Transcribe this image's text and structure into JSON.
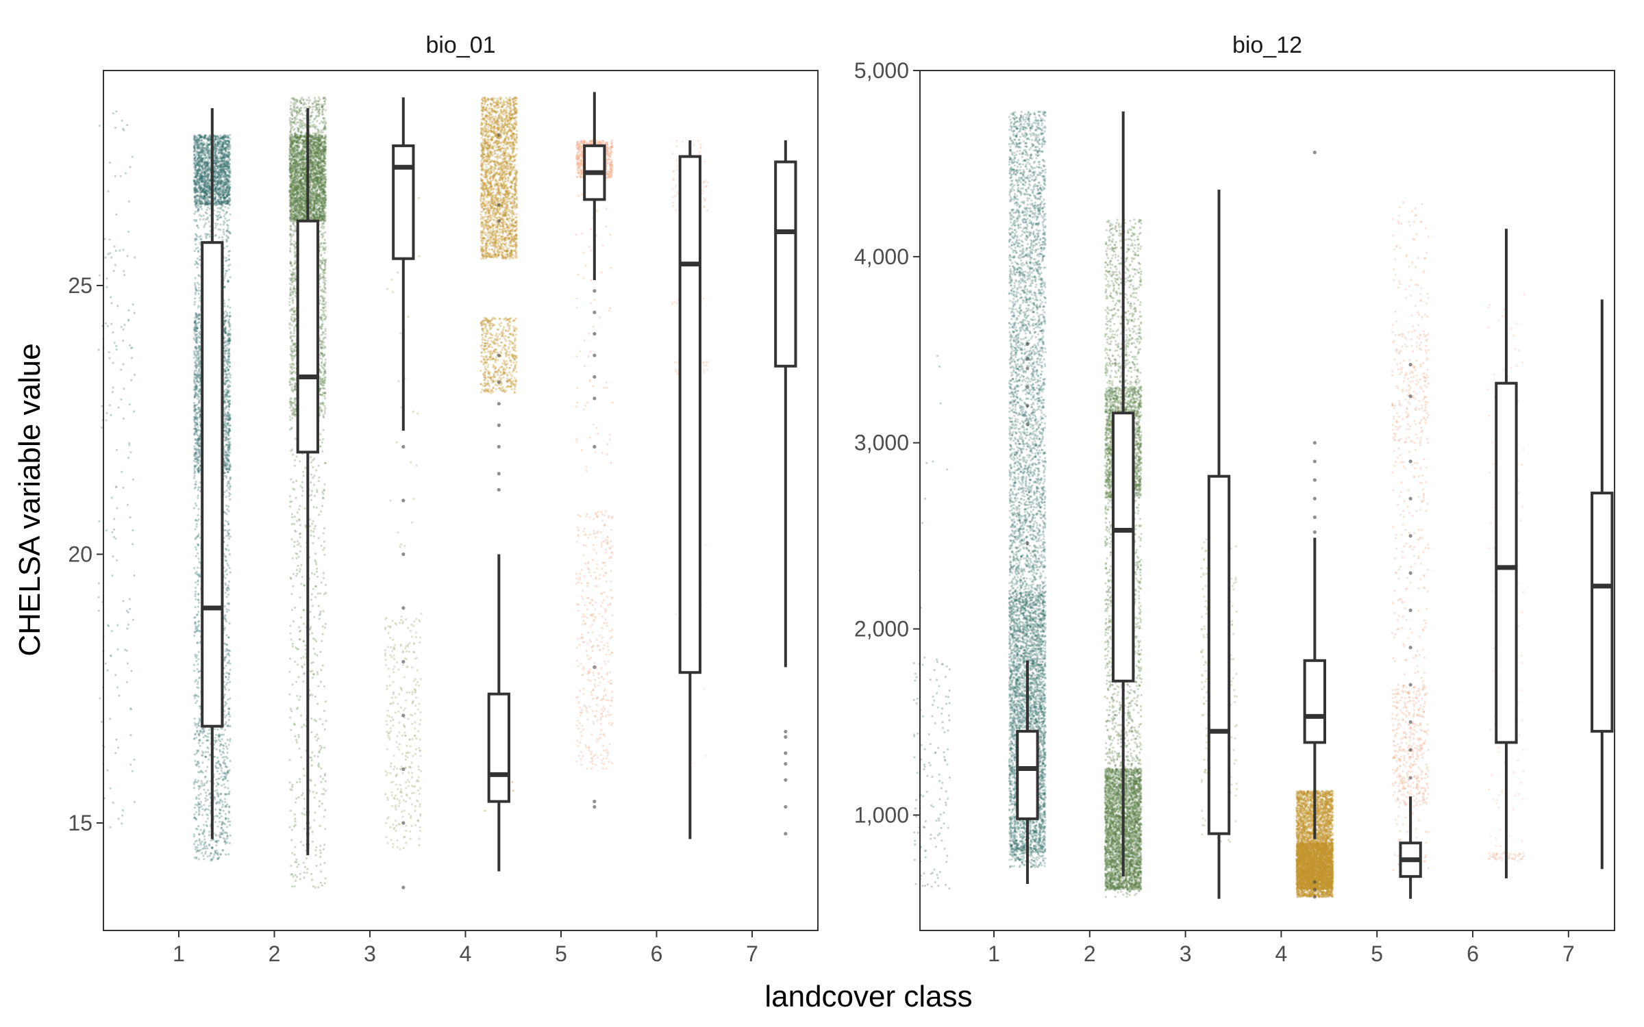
{
  "chart_data": {
    "type": "box",
    "ylabel": "CHELSA variable value",
    "xlabel": "landcover class",
    "categories": [
      "1",
      "2",
      "3",
      "4",
      "5",
      "6",
      "7"
    ],
    "class_colors": {
      "1": "#8aa6a6",
      "2": "#2e6b66",
      "3": "#5a7d45",
      "4": "#b5b28a",
      "5": "#c2952e",
      "6": "#efb08e",
      "7": "#f2c2b0"
    },
    "panels": [
      {
        "strip": "bio_01",
        "ylim": [
          13.0,
          29.0
        ],
        "yticks": [
          15,
          20,
          25
        ],
        "ytick_labels": [
          "15",
          "20",
          "25"
        ],
        "boxes": [
          {
            "class": "1",
            "whisker_low": 14.7,
            "q1": 16.8,
            "median": 19.0,
            "q3": 25.8,
            "whisker_high": 28.3,
            "outliers": []
          },
          {
            "class": "2",
            "whisker_low": 14.4,
            "q1": 21.9,
            "median": 23.3,
            "q3": 26.2,
            "whisker_high": 28.3,
            "outliers": [
              14.6,
              14.8,
              15.0,
              15.2
            ]
          },
          {
            "class": "3",
            "whisker_low": 22.3,
            "q1": 25.5,
            "median": 27.2,
            "q3": 27.6,
            "whisker_high": 28.5,
            "outliers": [
              13.8,
              15.0,
              16.0,
              17.0,
              18.0,
              19.0,
              20.0,
              21.0,
              22.0
            ]
          },
          {
            "class": "4",
            "whisker_low": 14.1,
            "q1": 15.4,
            "median": 15.9,
            "q3": 17.4,
            "whisker_high": 20.0,
            "outliers": [
              21.2,
              21.5,
              22.0,
              22.4,
              22.8,
              23.2,
              23.7,
              26.2,
              26.5,
              27.8
            ]
          },
          {
            "class": "5",
            "whisker_low": 25.1,
            "q1": 26.6,
            "median": 27.1,
            "q3": 27.6,
            "whisker_high": 28.6,
            "outliers": [
              15.3,
              15.4,
              17.9,
              22.0,
              22.9,
              23.3,
              23.7,
              24.1,
              24.5,
              24.9
            ]
          },
          {
            "class": "6",
            "whisker_low": 14.7,
            "q1": 17.8,
            "median": 25.4,
            "q3": 27.4,
            "whisker_high": 27.7,
            "outliers": []
          },
          {
            "class": "7",
            "whisker_low": 17.9,
            "q1": 23.5,
            "median": 26.0,
            "q3": 27.3,
            "whisker_high": 27.7,
            "outliers": [
              14.8,
              15.3,
              15.8,
              16.1,
              16.3,
              16.6,
              16.7
            ]
          }
        ],
        "jitter": [
          {
            "class": "1",
            "clusters": [
              {
                "lo": 14.8,
                "hi": 28.3,
                "n": 170,
                "alpha": 0.5
              }
            ]
          },
          {
            "class": "2",
            "clusters": [
              {
                "lo": 14.3,
                "hi": 27.8,
                "n": 2500,
                "alpha": 0.3
              },
              {
                "lo": 21.5,
                "hi": 24.5,
                "n": 1500,
                "alpha": 0.3
              },
              {
                "lo": 26.5,
                "hi": 27.8,
                "n": 1500,
                "alpha": 0.3
              }
            ]
          },
          {
            "class": "3",
            "clusters": [
              {
                "lo": 13.8,
                "hi": 28.5,
                "n": 800,
                "alpha": 0.3
              },
              {
                "lo": 22.5,
                "hi": 28.5,
                "n": 2000,
                "alpha": 0.3
              },
              {
                "lo": 26.2,
                "hi": 27.8,
                "n": 2000,
                "alpha": 0.35
              }
            ]
          },
          {
            "class": "4",
            "clusters": [
              {
                "lo": 14.5,
                "hi": 18.9,
                "n": 320,
                "alpha": 0.4
              },
              {
                "lo": 20.0,
                "hi": 27.8,
                "n": 25,
                "alpha": 0.4
              }
            ]
          },
          {
            "class": "5",
            "clusters": [
              {
                "lo": 25.5,
                "hi": 28.5,
                "n": 2200,
                "alpha": 0.35
              },
              {
                "lo": 23.0,
                "hi": 24.4,
                "n": 500,
                "alpha": 0.35
              },
              {
                "lo": 15.2,
                "hi": 17.0,
                "n": 6,
                "alpha": 0.4
              }
            ]
          },
          {
            "class": "6",
            "clusters": [
              {
                "lo": 27.0,
                "hi": 27.7,
                "n": 700,
                "alpha": 0.4
              },
              {
                "lo": 16.0,
                "hi": 20.8,
                "n": 380,
                "alpha": 0.35
              },
              {
                "lo": 21.5,
                "hi": 26.8,
                "n": 70,
                "alpha": 0.35
              }
            ]
          },
          {
            "class": "7",
            "clusters": [
              {
                "lo": 26.4,
                "hi": 27.7,
                "n": 90,
                "alpha": 0.4
              },
              {
                "lo": 23.3,
                "hi": 23.6,
                "n": 45,
                "alpha": 0.4
              },
              {
                "lo": 24.6,
                "hi": 24.8,
                "n": 20,
                "alpha": 0.4
              },
              {
                "lo": 16.0,
                "hi": 22.0,
                "n": 10,
                "alpha": 0.3
              }
            ]
          }
        ]
      },
      {
        "strip": "bio_12",
        "ylim": [
          380,
          5000
        ],
        "yticks": [
          1000,
          2000,
          3000,
          4000,
          5000
        ],
        "ytick_labels": [
          "1,000",
          "2,000",
          "3,000",
          "4,000",
          "5,000"
        ],
        "boxes": [
          {
            "class": "1",
            "whisker_low": 630,
            "q1": 980,
            "median": 1250,
            "q3": 1450,
            "whisker_high": 1830,
            "outliers": [
              2460,
              3100,
              3200,
              3300,
              3400,
              3450,
              3530
            ]
          },
          {
            "class": "2",
            "whisker_low": 670,
            "q1": 1720,
            "median": 2530,
            "q3": 3160,
            "whisker_high": 4780,
            "outliers": []
          },
          {
            "class": "3",
            "whisker_low": 550,
            "q1": 900,
            "median": 1450,
            "q3": 2820,
            "whisker_high": 4360,
            "outliers": []
          },
          {
            "class": "4",
            "whisker_low": 870,
            "q1": 1390,
            "median": 1530,
            "q3": 1830,
            "whisker_high": 2490,
            "outliers": [
              560,
              600,
              640,
              2520,
              2600,
              2700,
              2800,
              2900,
              3000,
              4560
            ]
          },
          {
            "class": "5",
            "whisker_low": 550,
            "q1": 670,
            "median": 760,
            "q3": 850,
            "whisker_high": 1100,
            "outliers": [
              1200,
              1350,
              1500,
              1700,
              1900,
              2100,
              2300,
              2500,
              2700,
              2900,
              3250,
              3420
            ]
          },
          {
            "class": "6",
            "whisker_low": 660,
            "q1": 1390,
            "median": 2330,
            "q3": 3320,
            "whisker_high": 4150,
            "outliers": []
          },
          {
            "class": "7",
            "whisker_low": 710,
            "q1": 1450,
            "median": 2230,
            "q3": 2730,
            "whisker_high": 3770,
            "outliers": []
          }
        ],
        "jitter": [
          {
            "class": "1",
            "clusters": [
              {
                "lo": 600,
                "hi": 1850,
                "n": 140,
                "alpha": 0.5
              },
              {
                "lo": 1900,
                "hi": 3550,
                "n": 10,
                "alpha": 0.5
              }
            ]
          },
          {
            "class": "2",
            "clusters": [
              {
                "lo": 720,
                "hi": 4780,
                "n": 5000,
                "alpha": 0.28
              },
              {
                "lo": 800,
                "hi": 2200,
                "n": 2200,
                "alpha": 0.28
              }
            ]
          },
          {
            "class": "3",
            "clusters": [
              {
                "lo": 560,
                "hi": 4200,
                "n": 2500,
                "alpha": 0.3
              },
              {
                "lo": 600,
                "hi": 1250,
                "n": 3200,
                "alpha": 0.3
              },
              {
                "lo": 2700,
                "hi": 3300,
                "n": 1500,
                "alpha": 0.3
              }
            ]
          },
          {
            "class": "4",
            "clusters": [
              {
                "lo": 1200,
                "hi": 2500,
                "n": 280,
                "alpha": 0.4
              },
              {
                "lo": 850,
                "hi": 1200,
                "n": 40,
                "alpha": 0.4
              }
            ]
          },
          {
            "class": "5",
            "clusters": [
              {
                "lo": 560,
                "hi": 1130,
                "n": 3500,
                "alpha": 0.35
              },
              {
                "lo": 600,
                "hi": 850,
                "n": 2500,
                "alpha": 0.35
              }
            ]
          },
          {
            "class": "6",
            "clusters": [
              {
                "lo": 700,
                "hi": 4300,
                "n": 400,
                "alpha": 0.35
              },
              {
                "lo": 1050,
                "hi": 1700,
                "n": 350,
                "alpha": 0.35
              },
              {
                "lo": 3000,
                "hi": 3600,
                "n": 150,
                "alpha": 0.35
              }
            ]
          },
          {
            "class": "7",
            "clusters": [
              {
                "lo": 750,
                "hi": 800,
                "n": 60,
                "alpha": 0.4
              },
              {
                "lo": 800,
                "hi": 3800,
                "n": 140,
                "alpha": 0.35
              }
            ]
          }
        ]
      }
    ]
  }
}
